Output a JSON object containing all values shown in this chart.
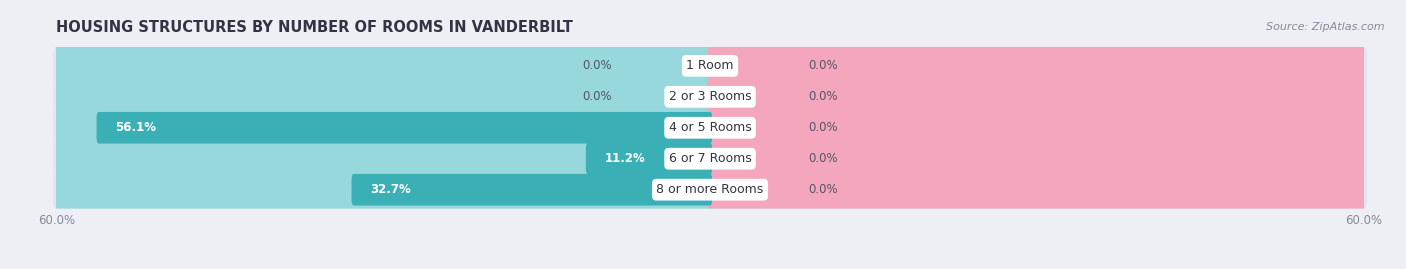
{
  "title": "HOUSING STRUCTURES BY NUMBER OF ROOMS IN VANDERBILT",
  "source": "Source: ZipAtlas.com",
  "categories": [
    "1 Room",
    "2 or 3 Rooms",
    "4 or 5 Rooms",
    "6 or 7 Rooms",
    "8 or more Rooms"
  ],
  "owner_values": [
    0.0,
    0.0,
    56.1,
    11.2,
    32.7
  ],
  "renter_values": [
    0.0,
    0.0,
    0.0,
    0.0,
    0.0
  ],
  "owner_color": "#3aafb5",
  "owner_bg_color": "#96d8dc",
  "renter_color": "#f4a7bc",
  "renter_bg_color": "#f4a7bc",
  "axis_limit": 60.0,
  "min_display_pct": 8.0,
  "bar_height": 0.62,
  "bg_color": "#eeeff5",
  "row_bg_color": "#e3e4ec",
  "row_separator_color": "#ffffff",
  "label_color_white": "#ffffff",
  "label_color_dark": "#555566",
  "axis_tick_color": "#888899",
  "title_fontsize": 10.5,
  "source_fontsize": 8,
  "value_fontsize": 8.5,
  "category_fontsize": 9,
  "legend_fontsize": 8.5,
  "tick_fontsize": 8.5
}
